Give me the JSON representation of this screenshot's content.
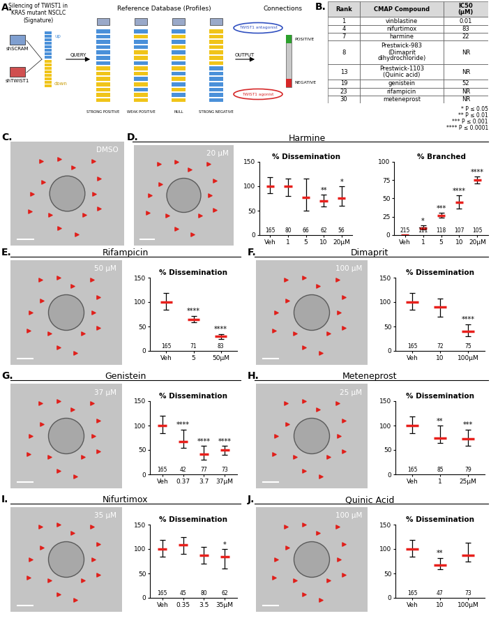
{
  "panel_a": {
    "letter": "A.",
    "signature_header": "Silencing of TWIST1 in\nKRAS mutant NSCLC\n(Signature)",
    "database_header": "Reference Database (Profiles)",
    "connections_header": "Connections",
    "conditions": [
      "shSCRAM",
      "shTWIST1"
    ],
    "signature_labels": [
      "up",
      "down"
    ],
    "query": "QUERY",
    "output": "OUTPUT",
    "profiles": [
      "STRONG POSITIVE",
      "WEAK POSITIVE",
      "NULL",
      "STRONG NEGATIVE"
    ],
    "scale": [
      "POSITIVE",
      "NEGATIVE"
    ],
    "outcomes": [
      "TWIST1 antagonist",
      "TWIST1 agonist"
    ]
  },
  "panel_b": {
    "letter": "B.",
    "table": {
      "header": [
        "Rank",
        "CMAP Compound",
        "IC50\n(µM)"
      ],
      "rows": [
        [
          "1",
          "vinblastine",
          "0.01"
        ],
        [
          "4",
          "nifurtimox",
          "83"
        ],
        [
          "7",
          "harmine",
          "22"
        ],
        [
          "8",
          "Prestwick-983\n(Dimaprit\ndihydrochloride)",
          "NR"
        ],
        [
          "13",
          "Prestwick-1103\n(Quinic acid)",
          "NR"
        ],
        [
          "19",
          "genistein",
          "52"
        ],
        [
          "23",
          "rifampicin",
          "NR"
        ],
        [
          "30",
          "meteneprost",
          "NR"
        ]
      ]
    }
  },
  "significance_key": [
    "* P ≤ 0.05",
    "** P ≤ 0.01",
    "*** P ≤ 0.001",
    "**** P ≤ 0.0001"
  ],
  "image_panels": [
    {
      "letter": "C.",
      "compound": null,
      "image_label": "DMSO"
    },
    {
      "letter": "D.",
      "compound": "Harmine",
      "image_label": "20 µM"
    },
    {
      "letter": "E.",
      "compound": "Rifampicin",
      "image_label": "50 µM"
    },
    {
      "letter": "F.",
      "compound": "Dimaprit",
      "image_label": "100 µM"
    },
    {
      "letter": "G.",
      "compound": "Genistein",
      "image_label": "37 µM"
    },
    {
      "letter": "H.",
      "compound": "Meteneprost",
      "image_label": "25 µM"
    },
    {
      "letter": "I.",
      "compound": "Nifurtimox",
      "image_label": "35 µM"
    },
    {
      "letter": "J.",
      "compound": "Quinic Acid",
      "image_label": "100 µM"
    }
  ],
  "chart_data": [
    {
      "panel": "D.",
      "type": "errorbar",
      "title": "% Dissemination",
      "categories": [
        "Veh",
        "1",
        "5",
        "10",
        "20µM"
      ],
      "values": [
        100,
        100,
        77,
        70,
        75
      ],
      "lower": [
        85,
        80,
        50,
        58,
        60
      ],
      "upper": [
        118,
        115,
        115,
        83,
        100
      ],
      "n": [
        165,
        80,
        66,
        62,
        56
      ],
      "significance": [
        null,
        null,
        null,
        "**",
        "*"
      ],
      "color": "#e8201c",
      "ylim": [
        0,
        150
      ],
      "yticks": [
        0,
        50,
        100,
        150
      ]
    },
    {
      "panel": "D.",
      "type": "errorbar",
      "title": "% Branched",
      "categories": [
        "Veh",
        "1",
        "5",
        "10",
        "20µM"
      ],
      "values": [
        0,
        10,
        27,
        45,
        75
      ],
      "lower": [
        0,
        8,
        24,
        36,
        70
      ],
      "upper": [
        0,
        13,
        30,
        54,
        80
      ],
      "n": [
        215,
        111,
        118,
        107,
        105
      ],
      "significance": [
        null,
        "*",
        "***",
        "****",
        "****"
      ],
      "color": "#e8201c",
      "ylim": [
        0,
        100
      ],
      "yticks": [
        0,
        25,
        50,
        75,
        100
      ]
    },
    {
      "panel": "E.",
      "type": "errorbar",
      "title": "% Dissemination",
      "categories": [
        "Veh",
        "5",
        "50µM"
      ],
      "values": [
        100,
        65,
        30
      ],
      "lower": [
        85,
        58,
        25
      ],
      "upper": [
        118,
        72,
        35
      ],
      "n": [
        165,
        71,
        83
      ],
      "significance": [
        null,
        "****",
        "****"
      ],
      "color": "#e8201c",
      "ylim": [
        0,
        150
      ],
      "yticks": [
        0,
        50,
        100,
        150
      ]
    },
    {
      "panel": "F.",
      "type": "errorbar",
      "title": "% Dissemination",
      "categories": [
        "Veh",
        "10",
        "100µM"
      ],
      "values": [
        100,
        90,
        40
      ],
      "lower": [
        85,
        70,
        30
      ],
      "upper": [
        118,
        107,
        55
      ],
      "n": [
        165,
        72,
        75
      ],
      "significance": [
        null,
        null,
        "****"
      ],
      "color": "#e8201c",
      "ylim": [
        0,
        150
      ],
      "yticks": [
        0,
        50,
        100,
        150
      ]
    },
    {
      "panel": "G.",
      "type": "errorbar",
      "title": "% Dissemination",
      "categories": [
        "Veh",
        "0.37",
        "3.7",
        "37µM"
      ],
      "values": [
        100,
        67,
        42,
        50
      ],
      "lower": [
        85,
        55,
        30,
        40
      ],
      "upper": [
        120,
        92,
        58,
        58
      ],
      "n": [
        165,
        42,
        77,
        73
      ],
      "significance": [
        null,
        "****",
        "****",
        "****"
      ],
      "color": "#e8201c",
      "ylim": [
        0,
        150
      ],
      "yticks": [
        0,
        50,
        100,
        150
      ]
    },
    {
      "panel": "H.",
      "type": "errorbar",
      "title": "% Dissemination",
      "categories": [
        "Veh",
        "1",
        "25µM"
      ],
      "values": [
        100,
        75,
        73
      ],
      "lower": [
        85,
        65,
        58
      ],
      "upper": [
        118,
        100,
        92
      ],
      "n": [
        165,
        85,
        79
      ],
      "significance": [
        null,
        "**",
        "***"
      ],
      "color": "#e8201c",
      "ylim": [
        0,
        150
      ],
      "yticks": [
        0,
        50,
        100,
        150
      ]
    },
    {
      "panel": "I.",
      "type": "errorbar",
      "title": "% Dissemination",
      "categories": [
        "Veh",
        "0.35",
        "3.5",
        "35µM"
      ],
      "values": [
        100,
        108,
        87,
        85
      ],
      "lower": [
        85,
        90,
        70,
        60
      ],
      "upper": [
        118,
        125,
        105,
        100
      ],
      "n": [
        165,
        45,
        80,
        62
      ],
      "significance": [
        null,
        null,
        null,
        "*"
      ],
      "color": "#e8201c",
      "ylim": [
        0,
        150
      ],
      "yticks": [
        0,
        50,
        100,
        150
      ]
    },
    {
      "panel": "J.",
      "type": "errorbar",
      "title": "% Dissemination",
      "categories": [
        "Veh",
        "10",
        "100µM"
      ],
      "values": [
        100,
        67,
        87
      ],
      "lower": [
        85,
        58,
        75
      ],
      "upper": [
        118,
        82,
        113
      ],
      "n": [
        165,
        47,
        73
      ],
      "significance": [
        null,
        "**",
        null
      ],
      "color": "#e8201c",
      "ylim": [
        0,
        150
      ],
      "yticks": [
        0,
        50,
        100,
        150
      ]
    }
  ]
}
